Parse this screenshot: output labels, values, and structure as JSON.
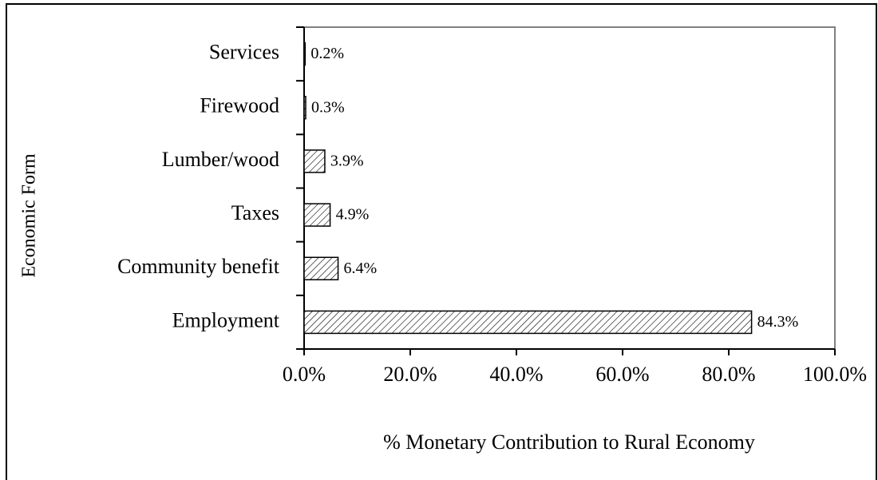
{
  "chart_data": {
    "type": "barh",
    "categories": [
      "Employment",
      "Community benefit",
      "Taxes",
      "Lumber/wood",
      "Firewood",
      "Services"
    ],
    "values": [
      84.3,
      6.4,
      4.9,
      3.9,
      0.3,
      0.2
    ],
    "value_labels": [
      "84.3%",
      "6.4%",
      "4.9%",
      "3.9%",
      "0.3%",
      "0.2%"
    ],
    "color": "#000000",
    "xlim": [
      0,
      100
    ],
    "xticks": [
      {
        "value": 0,
        "label": "0.0%"
      },
      {
        "value": 20,
        "label": "20.0%"
      },
      {
        "value": 40,
        "label": "40.0%"
      },
      {
        "value": 60,
        "label": "60.0%"
      },
      {
        "value": 80,
        "label": "80.0%"
      },
      {
        "value": 100,
        "label": "100.0%"
      }
    ],
    "xlabel": "% Monetary Contribution to Rural Economy",
    "ylabel": "Economic Form"
  }
}
